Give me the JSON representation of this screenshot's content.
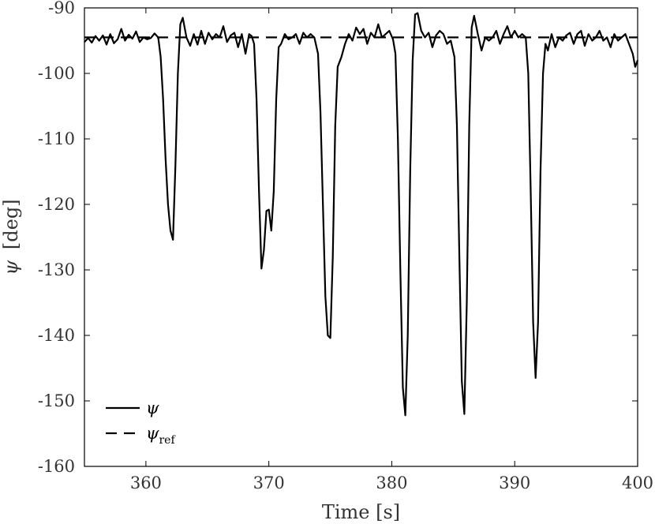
{
  "chart_data": {
    "type": "line",
    "title": "",
    "xlabel": "Time [s]",
    "ylabel_symbol": "ψ",
    "ylabel_unit": "[deg]",
    "xlim": [
      355,
      400
    ],
    "ylim": [
      -160,
      -90
    ],
    "xticks": [
      360,
      370,
      380,
      390,
      400
    ],
    "yticks": [
      -160,
      -150,
      -140,
      -130,
      -120,
      -110,
      -100,
      -90
    ],
    "legend_position": "bottom-left",
    "grid": false,
    "series": [
      {
        "name": "ψ",
        "style": "solid",
        "color": "#000000",
        "points": [
          [
            355.0,
            -95.2
          ],
          [
            355.3,
            -94.6
          ],
          [
            355.6,
            -95.3
          ],
          [
            355.9,
            -94.3
          ],
          [
            356.2,
            -95.0
          ],
          [
            356.5,
            -94.2
          ],
          [
            356.8,
            -95.6
          ],
          [
            357.1,
            -94.0
          ],
          [
            357.4,
            -95.4
          ],
          [
            357.7,
            -94.8
          ],
          [
            358.0,
            -93.2
          ],
          [
            358.3,
            -95.0
          ],
          [
            358.6,
            -94.1
          ],
          [
            358.9,
            -94.7
          ],
          [
            359.2,
            -93.6
          ],
          [
            359.5,
            -95.2
          ],
          [
            359.8,
            -94.5
          ],
          [
            360.1,
            -94.8
          ],
          [
            360.4,
            -94.6
          ],
          [
            360.7,
            -93.9
          ],
          [
            361.0,
            -94.5
          ],
          [
            361.2,
            -97.5
          ],
          [
            361.4,
            -104.0
          ],
          [
            361.6,
            -113.0
          ],
          [
            361.8,
            -120.0
          ],
          [
            362.0,
            -124.0
          ],
          [
            362.2,
            -125.4
          ],
          [
            362.4,
            -114.0
          ],
          [
            362.6,
            -100.0
          ],
          [
            362.8,
            -92.5
          ],
          [
            363.0,
            -91.5
          ],
          [
            363.3,
            -94.5
          ],
          [
            363.6,
            -95.8
          ],
          [
            363.9,
            -94.0
          ],
          [
            364.2,
            -95.6
          ],
          [
            364.5,
            -93.5
          ],
          [
            364.8,
            -95.5
          ],
          [
            365.1,
            -93.8
          ],
          [
            365.4,
            -94.8
          ],
          [
            365.7,
            -94.0
          ],
          [
            366.0,
            -94.5
          ],
          [
            366.3,
            -92.8
          ],
          [
            366.6,
            -95.2
          ],
          [
            366.9,
            -94.2
          ],
          [
            367.2,
            -93.8
          ],
          [
            367.5,
            -96.0
          ],
          [
            367.8,
            -94.0
          ],
          [
            368.1,
            -97.0
          ],
          [
            368.4,
            -94.0
          ],
          [
            368.6,
            -94.3
          ],
          [
            368.8,
            -95.5
          ],
          [
            369.0,
            -104.0
          ],
          [
            369.2,
            -118.0
          ],
          [
            369.4,
            -129.8
          ],
          [
            369.6,
            -127.0
          ],
          [
            369.8,
            -121.0
          ],
          [
            370.0,
            -120.8
          ],
          [
            370.2,
            -124.0
          ],
          [
            370.4,
            -118.0
          ],
          [
            370.6,
            -104.0
          ],
          [
            370.8,
            -96.0
          ],
          [
            371.0,
            -95.5
          ],
          [
            371.3,
            -94.0
          ],
          [
            371.6,
            -94.8
          ],
          [
            371.9,
            -94.5
          ],
          [
            372.2,
            -94.0
          ],
          [
            372.5,
            -95.5
          ],
          [
            372.8,
            -93.8
          ],
          [
            373.1,
            -94.5
          ],
          [
            373.4,
            -94.0
          ],
          [
            373.7,
            -94.5
          ],
          [
            374.0,
            -97.0
          ],
          [
            374.2,
            -106.0
          ],
          [
            374.4,
            -120.0
          ],
          [
            374.6,
            -134.0
          ],
          [
            374.8,
            -140.0
          ],
          [
            375.0,
            -140.4
          ],
          [
            375.2,
            -128.0
          ],
          [
            375.4,
            -108.0
          ],
          [
            375.6,
            -99.0
          ],
          [
            375.9,
            -97.5
          ],
          [
            376.2,
            -95.5
          ],
          [
            376.5,
            -94.0
          ],
          [
            376.8,
            -95.0
          ],
          [
            377.1,
            -93.0
          ],
          [
            377.4,
            -94.0
          ],
          [
            377.7,
            -93.2
          ],
          [
            378.0,
            -95.5
          ],
          [
            378.3,
            -93.8
          ],
          [
            378.6,
            -94.5
          ],
          [
            378.9,
            -92.5
          ],
          [
            379.2,
            -94.5
          ],
          [
            379.5,
            -94.0
          ],
          [
            379.8,
            -93.5
          ],
          [
            380.1,
            -94.8
          ],
          [
            380.3,
            -97.0
          ],
          [
            380.5,
            -110.0
          ],
          [
            380.7,
            -130.0
          ],
          [
            380.9,
            -148.0
          ],
          [
            381.1,
            -152.2
          ],
          [
            381.3,
            -140.0
          ],
          [
            381.5,
            -115.0
          ],
          [
            381.7,
            -98.0
          ],
          [
            381.9,
            -91.0
          ],
          [
            382.1,
            -90.8
          ],
          [
            382.4,
            -93.5
          ],
          [
            382.7,
            -94.5
          ],
          [
            383.0,
            -93.8
          ],
          [
            383.3,
            -96.0
          ],
          [
            383.6,
            -94.2
          ],
          [
            383.9,
            -93.5
          ],
          [
            384.2,
            -94.0
          ],
          [
            384.5,
            -95.5
          ],
          [
            384.8,
            -95.0
          ],
          [
            385.1,
            -97.5
          ],
          [
            385.3,
            -108.0
          ],
          [
            385.5,
            -128.0
          ],
          [
            385.7,
            -147.0
          ],
          [
            385.9,
            -152.0
          ],
          [
            386.1,
            -135.0
          ],
          [
            386.3,
            -108.0
          ],
          [
            386.5,
            -93.0
          ],
          [
            386.7,
            -91.2
          ],
          [
            387.0,
            -94.0
          ],
          [
            387.3,
            -96.5
          ],
          [
            387.6,
            -94.5
          ],
          [
            387.9,
            -95.0
          ],
          [
            388.2,
            -94.5
          ],
          [
            388.5,
            -93.5
          ],
          [
            388.8,
            -95.5
          ],
          [
            389.1,
            -94.0
          ],
          [
            389.4,
            -92.8
          ],
          [
            389.7,
            -94.5
          ],
          [
            390.0,
            -93.5
          ],
          [
            390.3,
            -94.5
          ],
          [
            390.6,
            -94.0
          ],
          [
            390.9,
            -94.5
          ],
          [
            391.1,
            -100.0
          ],
          [
            391.3,
            -118.0
          ],
          [
            391.5,
            -138.0
          ],
          [
            391.7,
            -146.5
          ],
          [
            391.9,
            -138.0
          ],
          [
            392.1,
            -115.0
          ],
          [
            392.3,
            -100.0
          ],
          [
            392.5,
            -95.5
          ],
          [
            392.7,
            -96.5
          ],
          [
            393.0,
            -94.0
          ],
          [
            393.3,
            -96.0
          ],
          [
            393.6,
            -94.5
          ],
          [
            393.9,
            -95.0
          ],
          [
            394.2,
            -94.2
          ],
          [
            394.5,
            -93.8
          ],
          [
            394.8,
            -95.5
          ],
          [
            395.1,
            -94.0
          ],
          [
            395.4,
            -93.5
          ],
          [
            395.7,
            -95.8
          ],
          [
            396.0,
            -94.0
          ],
          [
            396.3,
            -95.0
          ],
          [
            396.6,
            -94.5
          ],
          [
            396.9,
            -93.5
          ],
          [
            397.2,
            -95.0
          ],
          [
            397.5,
            -94.5
          ],
          [
            397.8,
            -96.0
          ],
          [
            398.1,
            -94.0
          ],
          [
            398.4,
            -95.0
          ],
          [
            398.7,
            -94.5
          ],
          [
            399.0,
            -94.0
          ],
          [
            399.3,
            -95.5
          ],
          [
            399.6,
            -97.0
          ],
          [
            399.8,
            -99.0
          ],
          [
            400.0,
            -98.0
          ]
        ]
      },
      {
        "name": "ψ_ref",
        "style": "dashed",
        "color": "#000000",
        "points": [
          [
            355.0,
            -94.5
          ],
          [
            400.0,
            -94.5
          ]
        ]
      }
    ],
    "legend": [
      {
        "symbol": "ψ",
        "subscript": "",
        "style": "solid"
      },
      {
        "symbol": "ψ",
        "subscript": "ref",
        "style": "dashed"
      }
    ]
  }
}
